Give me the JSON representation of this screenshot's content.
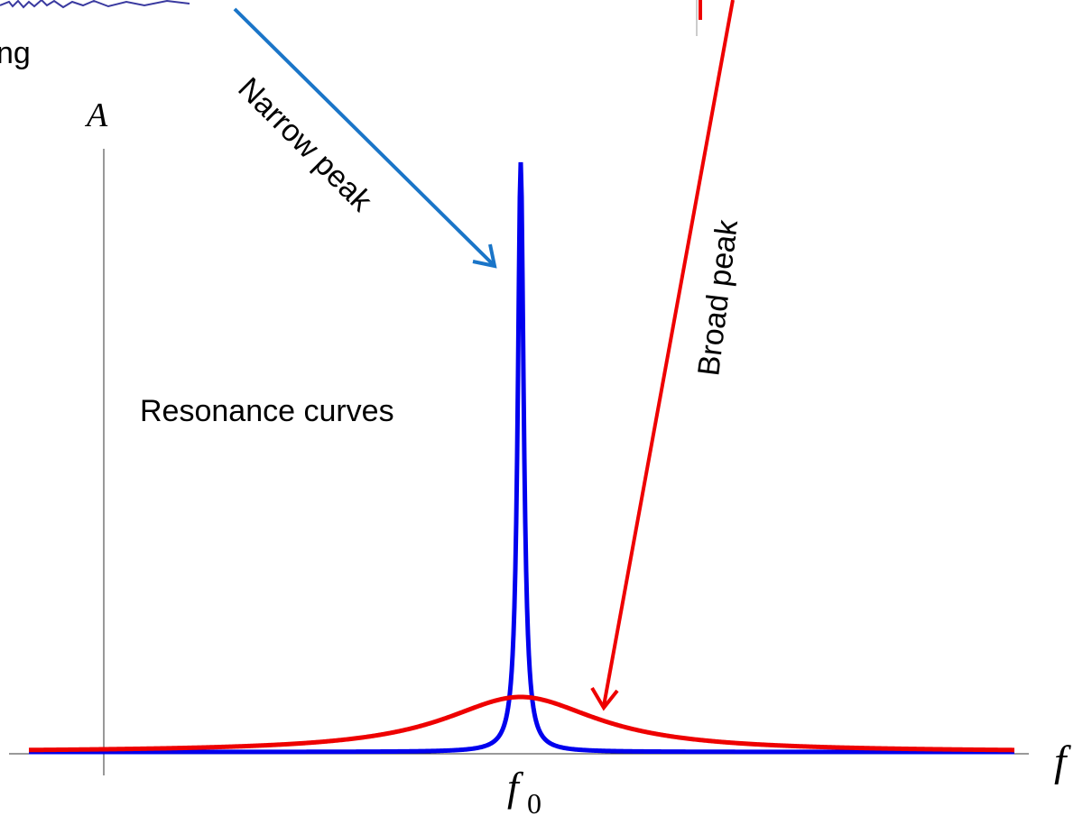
{
  "labels": {
    "cropped_top_left": "ng",
    "y_axis": "A",
    "x_axis": "f",
    "center_frequency": {
      "symbol": "f",
      "subscript": "0"
    },
    "narrow": "Narrow peak",
    "broad": "Broad peak",
    "title": "Resonance curves"
  }
}
